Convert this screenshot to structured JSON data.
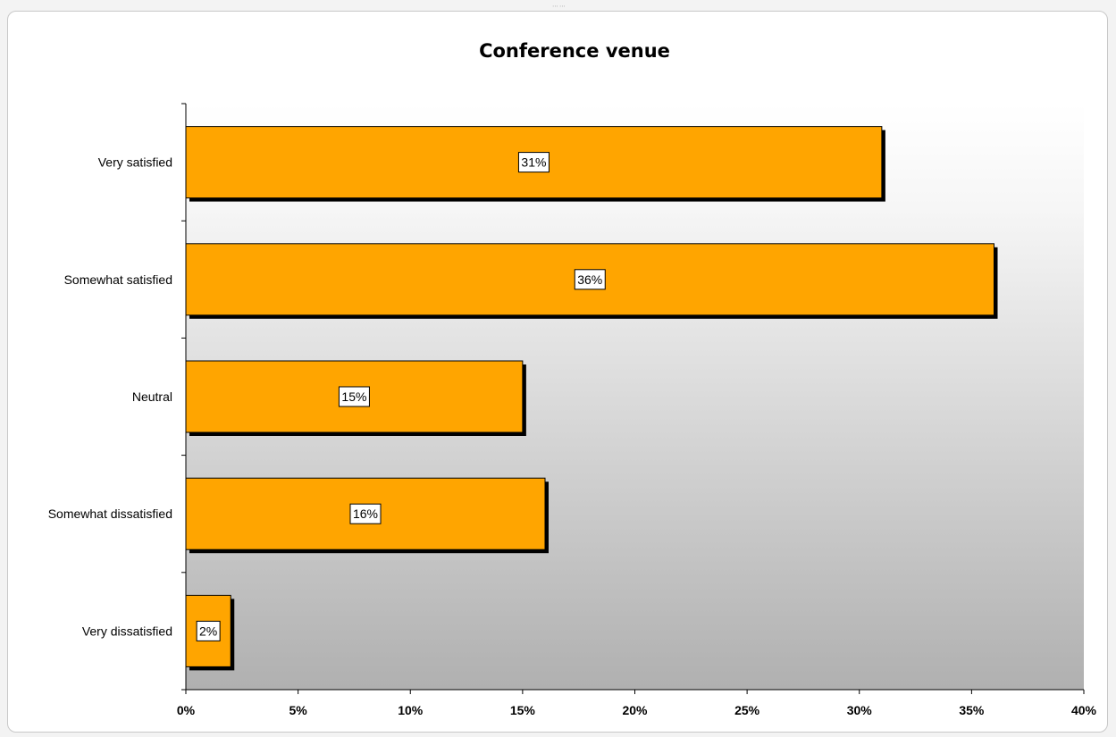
{
  "chart_data": {
    "type": "bar",
    "orientation": "horizontal",
    "title": "Conference venue",
    "categories": [
      "Very satisfied",
      "Somewhat satisfied",
      "Neutral",
      "Somewhat dissatisfied",
      "Very dissatisfied"
    ],
    "values": [
      31,
      36,
      15,
      16,
      2
    ],
    "value_labels": [
      "31%",
      "36%",
      "15%",
      "16%",
      "2%"
    ],
    "xlim": [
      0,
      40
    ],
    "xticks": [
      0,
      5,
      10,
      15,
      20,
      25,
      30,
      35,
      40
    ],
    "xtick_labels": [
      "0%",
      "5%",
      "10%",
      "15%",
      "20%",
      "25%",
      "30%",
      "35%",
      "40%"
    ],
    "bar_color": "#FFA500",
    "shadow_color": "#000000",
    "plot_background": "vertical gradient white to gray",
    "grid": false,
    "legend": "none"
  }
}
